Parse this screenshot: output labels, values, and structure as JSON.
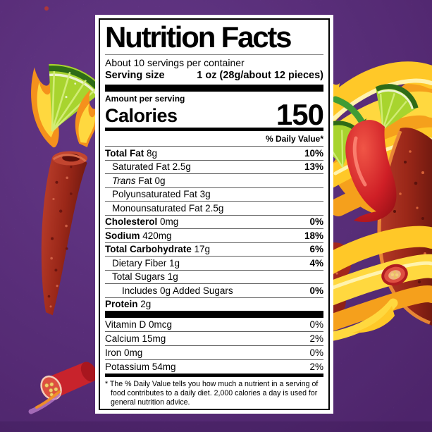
{
  "label": {
    "title": "Nutrition Facts",
    "servings_per_container": "About 10 servings per container",
    "serving_size_label": "Serving size",
    "serving_size_value": "1 oz (28g/about 12 pieces)",
    "amount_per_serving": "Amount per serving",
    "calories_label": "Calories",
    "calories_value": "150",
    "daily_value_header": "% Daily Value*",
    "rows": [
      {
        "name": "Total Fat",
        "amount": "8g",
        "dv": "10%",
        "bold": true,
        "indent": 0
      },
      {
        "name": "Saturated Fat",
        "amount": "2.5g",
        "dv": "13%",
        "indent": 1
      },
      {
        "name": "Trans",
        "name2": "Fat",
        "amount": "0g",
        "dv": "",
        "italic": true,
        "indent": 1
      },
      {
        "name": "Polyunsaturated Fat",
        "amount": "3g",
        "dv": "",
        "indent": 1
      },
      {
        "name": "Monounsaturated Fat",
        "amount": "2.5g",
        "dv": "",
        "indent": 1
      },
      {
        "name": "Cholesterol",
        "amount": "0mg",
        "dv": "0%",
        "bold": true,
        "indent": 0
      },
      {
        "name": "Sodium",
        "amount": "420mg",
        "dv": "18%",
        "bold": true,
        "indent": 0
      },
      {
        "name": "Total Carbohydrate",
        "amount": "17g",
        "dv": "6%",
        "bold": true,
        "indent": 0
      },
      {
        "name": "Dietary Fiber",
        "amount": "1g",
        "dv": "4%",
        "indent": 1
      },
      {
        "name": "Total Sugars",
        "amount": "1g",
        "dv": "",
        "indent": 1
      },
      {
        "name": "Includes 0g Added Sugars",
        "amount": "",
        "dv": "0%",
        "indent": 2
      },
      {
        "name": "Protein",
        "amount": "2g",
        "dv": "",
        "bold": true,
        "indent": 0
      }
    ],
    "vitamins": [
      {
        "name": "Vitamin D",
        "amount": "0mcg",
        "dv": "0%"
      },
      {
        "name": "Calcium",
        "amount": "15mg",
        "dv": "2%"
      },
      {
        "name": "Iron",
        "amount": "0mg",
        "dv": "0%"
      },
      {
        "name": "Potassium",
        "amount": "54mg",
        "dv": "2%"
      }
    ],
    "footnote": "* The % Daily Value tells you how much a nutrient in a serving of food contributes to a daily diet. 2,000 calories a day is used for general nutrition advice."
  },
  "art": {
    "background_color": "#6b3691",
    "flame_yellow": "#ffc828",
    "flame_orange": "#f5911c",
    "flame_highlight": "#fff3ae",
    "chili_red": "#cf1f26",
    "chili_stem_green": "#3f9c35",
    "lime_flesh_green": "#a8d42e",
    "lime_rind_green": "#2e6b17",
    "snack_red": "#9a2417",
    "label_background": "#ffffff",
    "label_text": "#000000",
    "elements": [
      "lime-wedge-flame-art",
      "rolled-chip-flame-art",
      "cut-chili-art",
      "flame-swirl-art",
      "chili-pepper-art",
      "lime-slice-art",
      "rolled-chip-diagonal-art",
      "chili-slice-art"
    ]
  }
}
